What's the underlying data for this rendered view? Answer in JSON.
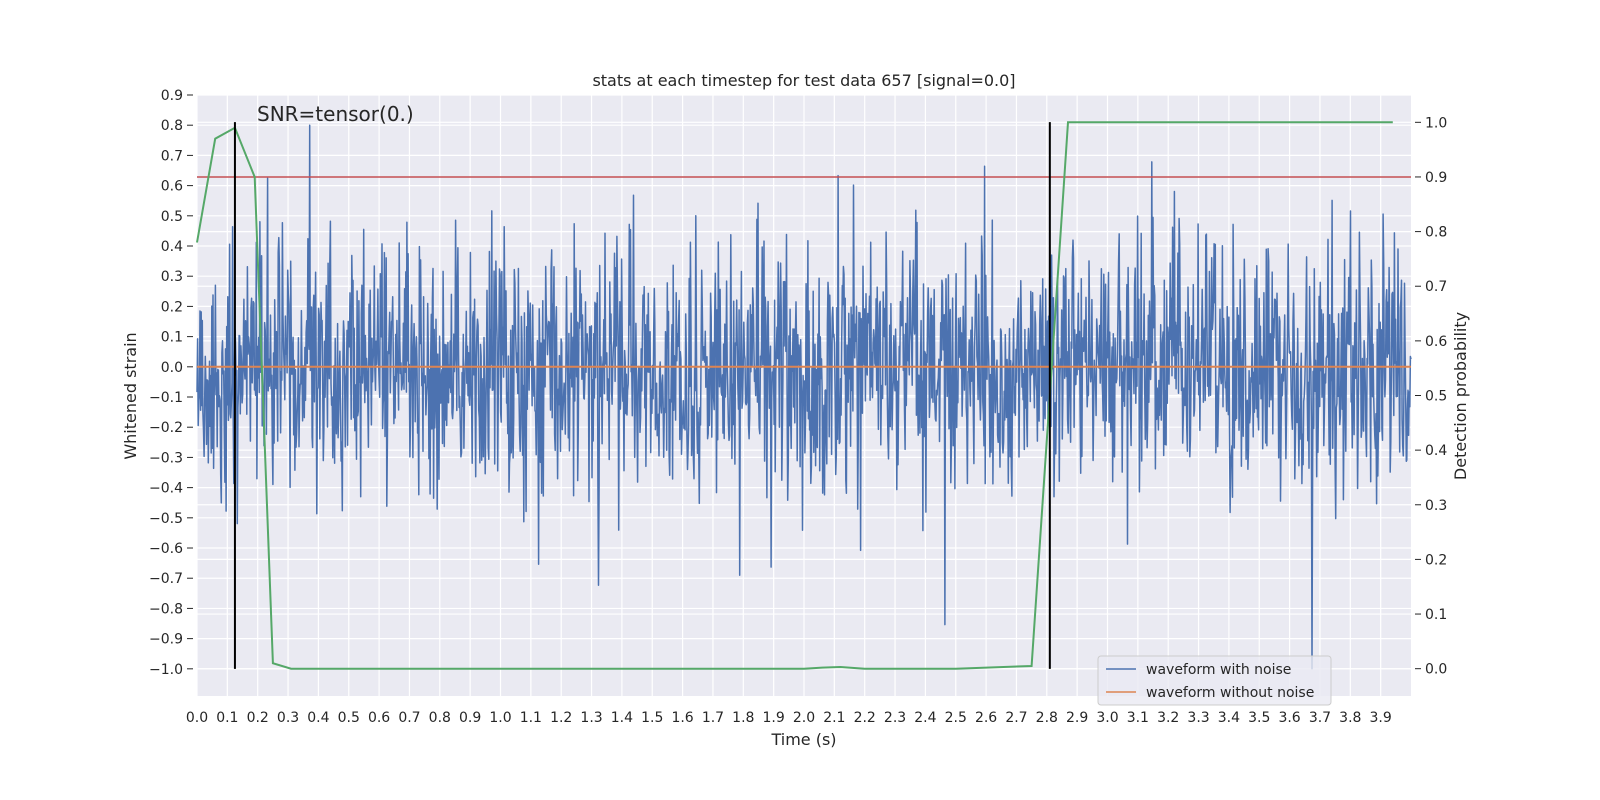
{
  "chart_data": {
    "type": "line",
    "title": "stats at each timestep for test data 657 [signal=0.0]",
    "xlabel": "Time (s)",
    "ylabel": "Whitened strain",
    "y2label": "Detection probability",
    "annotation": "SNR=tensor(0.)",
    "xlim": [
      0.0,
      4.0
    ],
    "ylim": [
      -1.09,
      0.9
    ],
    "y2lim": [
      -0.05,
      1.05
    ],
    "xticks": [
      "0.0",
      "0.1",
      "0.2",
      "0.3",
      "0.4",
      "0.5",
      "0.6",
      "0.7",
      "0.8",
      "0.9",
      "1.0",
      "1.1",
      "1.2",
      "1.3",
      "1.4",
      "1.5",
      "1.6",
      "1.7",
      "1.8",
      "1.9",
      "2.0",
      "2.1",
      "2.2",
      "2.3",
      "2.4",
      "2.5",
      "2.6",
      "2.7",
      "2.8",
      "2.9",
      "3.0",
      "3.1",
      "3.2",
      "3.3",
      "3.4",
      "3.5",
      "3.6",
      "3.7",
      "3.8",
      "3.9"
    ],
    "yticks": [
      "0.9",
      "0.8",
      "0.7",
      "0.6",
      "0.5",
      "0.4",
      "0.3",
      "0.2",
      "0.1",
      "0.0",
      "−0.1",
      "−0.2",
      "−0.3",
      "−0.4",
      "−0.5",
      "−0.6",
      "−0.7",
      "−0.8",
      "−0.9",
      "−1.0"
    ],
    "y2ticks": [
      "0.0",
      "0.1",
      "0.2",
      "0.3",
      "0.4",
      "0.5",
      "0.6",
      "0.7",
      "0.8",
      "0.9",
      "1.0"
    ],
    "legend_position": "lower-right",
    "series": [
      {
        "name": "waveform with noise",
        "color": "#4c72b0",
        "axis": "left",
        "kind": "noise",
        "rms": 0.2,
        "peak_max": 0.8,
        "peak_min": -1.0,
        "samples": 2048
      },
      {
        "name": "waveform without noise",
        "color": "#dd8452",
        "axis": "left",
        "kind": "constant",
        "value": 0.0
      }
    ],
    "probability": {
      "color": "#55a868",
      "axis": "right",
      "x": [
        0.0,
        0.06,
        0.125,
        0.19,
        0.25,
        0.31,
        0.5,
        1.0,
        1.5,
        2.0,
        2.06,
        2.12,
        2.2,
        2.5,
        2.75,
        2.81,
        2.87,
        3.0,
        3.5,
        3.94
      ],
      "y": [
        0.78,
        0.97,
        0.99,
        0.9,
        0.01,
        0.0,
        0.0,
        0.0,
        0.0,
        0.0,
        0.002,
        0.003,
        0.0,
        0.0,
        0.005,
        0.5,
        1.0,
        1.0,
        1.0,
        1.0
      ]
    },
    "threshold": {
      "value": 0.9,
      "axis": "right",
      "color": "#c44e52"
    },
    "vlines": [
      {
        "x": 0.125,
        "ymin": -1.0,
        "ymax": 0.81,
        "color": "#000000"
      },
      {
        "x": 2.81,
        "ymin": -1.0,
        "ymax": 0.81,
        "color": "#000000"
      }
    ],
    "grid": true
  }
}
